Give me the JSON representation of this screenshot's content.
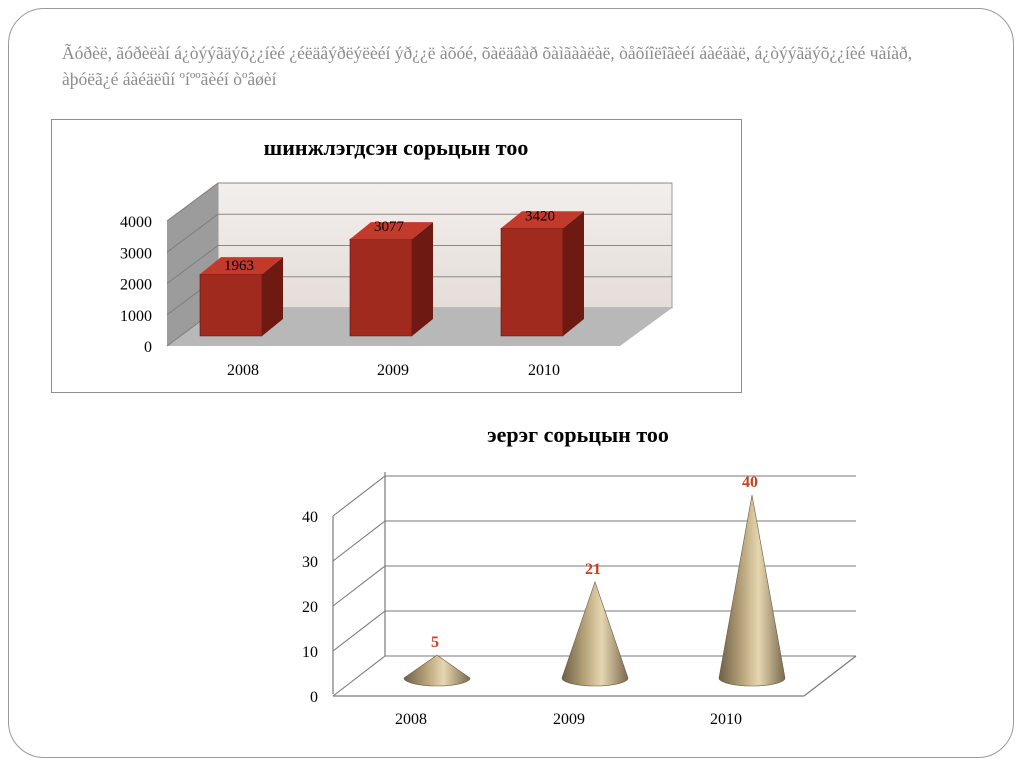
{
  "slide": {
    "header": "Ãóðèë, ãóðèëàí á¿òýýãäýõ¿¿íèé ¿éëäâýðëýëèéí ýð¿¿ë àõóé, õàëäâàð õàìãààëàë, òåõíîëîãèéí áàéäàë, á¿òýýãäýõ¿¿íèé чàíàð, àþóëã¿é áàéäëûí ºíººãèéí òºâøèí"
  },
  "chart_data": [
    {
      "type": "bar",
      "title": "шинжлэгдсэн сорьцын тоо",
      "categories": [
        "2008",
        "2009",
        "2010"
      ],
      "values": [
        1963,
        3077,
        3420
      ],
      "data_labels": [
        "1963",
        "3077",
        "3420"
      ],
      "yticks": [
        "0",
        "1000",
        "2000",
        "3000",
        "4000"
      ],
      "ylim": [
        0,
        4000
      ],
      "grid": true,
      "legend": "none",
      "colors": {
        "bar_front": "#a12a1f",
        "bar_side": "#6e1a13",
        "bar_top": "#c23a2c",
        "back_wall": "#ede7e4",
        "side_wall": "#9c9c9c",
        "floor": "#b8b8b8"
      }
    },
    {
      "type": "bar",
      "subtype": "3d-cone",
      "title": "эерэг сорьцын тоо",
      "categories": [
        "2008",
        "2009",
        "2010"
      ],
      "values": [
        5,
        21,
        40
      ],
      "data_labels": [
        "5",
        "21",
        "40"
      ],
      "yticks": [
        "0",
        "10",
        "20",
        "30",
        "40"
      ],
      "ylim": [
        0,
        40
      ],
      "grid": true,
      "legend": "none",
      "colors": {
        "cone_light": "#e6d6b0",
        "cone_mid": "#b8a57c",
        "cone_dark": "#6e6048",
        "data_label": "#c8401f",
        "gridline": "#7a7a7a"
      }
    }
  ]
}
